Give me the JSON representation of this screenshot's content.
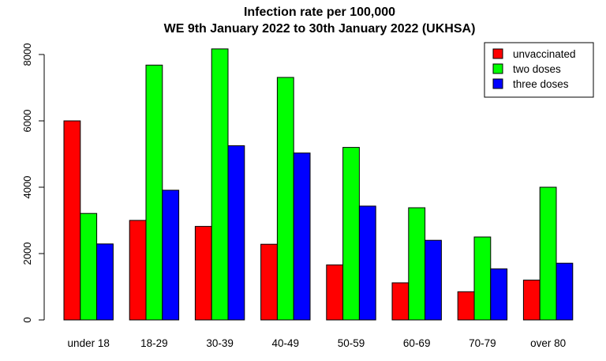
{
  "chart_data": {
    "type": "bar",
    "title": "Infection rate per 100,000",
    "subtitle": "WE 9th January 2022 to 30th January 2022 (UKHSA)",
    "xlabel": "",
    "ylabel": "",
    "categories": [
      "under 18",
      "18-29",
      "30-39",
      "40-49",
      "50-59",
      "60-69",
      "70-79",
      "over 80"
    ],
    "series": [
      {
        "name": "unvaccinated",
        "color": "#ff0000",
        "values": [
          6000,
          3000,
          2820,
          2280,
          1660,
          1120,
          850,
          1200
        ]
      },
      {
        "name": "two doses",
        "color": "#00ff00",
        "values": [
          3210,
          7680,
          8170,
          7310,
          5200,
          3380,
          2500,
          4000
        ]
      },
      {
        "name": "three doses",
        "color": "#0000ff",
        "values": [
          2290,
          3910,
          5250,
          5030,
          3430,
          2400,
          1540,
          1710
        ]
      }
    ],
    "yticks": [
      0,
      2000,
      4000,
      6000,
      8000
    ],
    "ylim": [
      0,
      8500
    ],
    "grid": false,
    "legend_position": "top-right"
  }
}
